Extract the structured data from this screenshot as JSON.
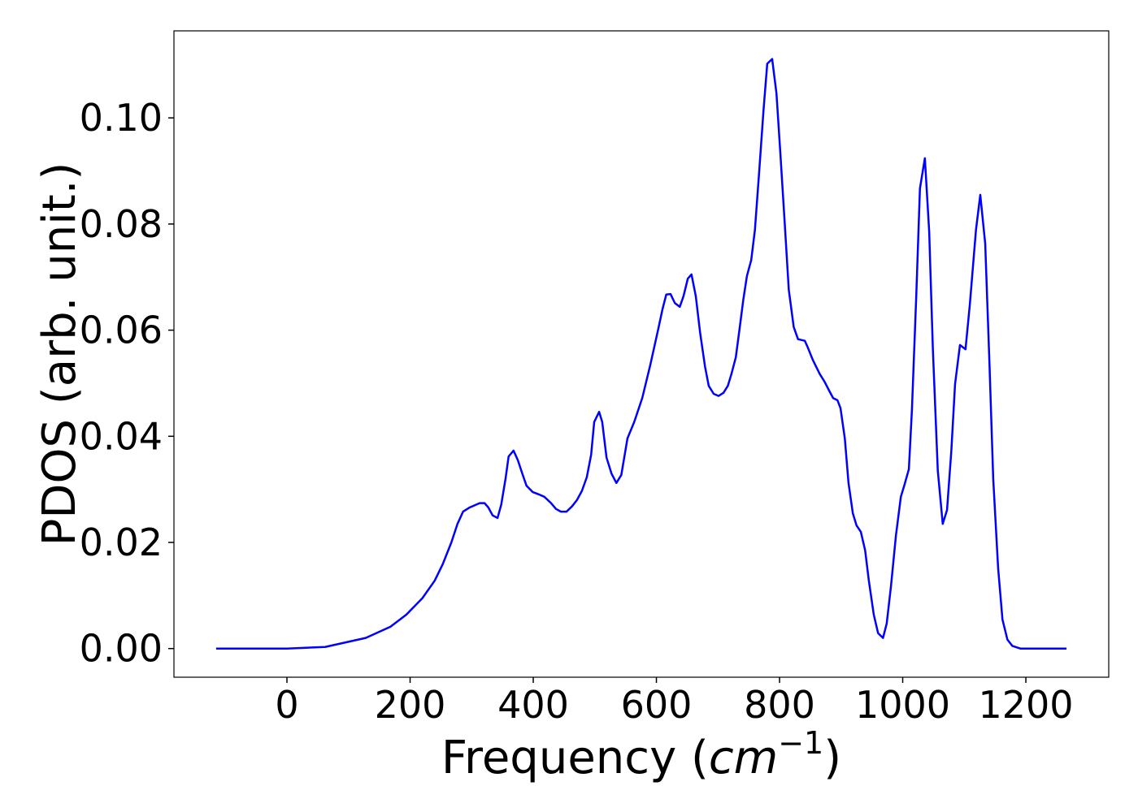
{
  "chart_data": {
    "type": "line",
    "xlabel": [
      "Frequency (",
      "cm",
      "−1",
      ")"
    ],
    "ylabel": "PDOS (arb. unit.)",
    "color": "#0000ff",
    "x": [
      -115,
      0,
      62,
      128,
      168,
      194,
      220,
      240,
      253,
      267,
      277,
      286,
      297,
      313,
      321,
      327,
      334,
      342,
      348,
      355,
      360,
      368,
      375,
      383,
      389,
      399,
      408,
      418,
      429,
      437,
      445,
      454,
      463,
      471,
      479,
      487,
      494,
      499,
      507,
      512,
      519,
      527,
      535,
      543,
      553,
      564,
      577,
      590,
      603,
      610,
      616,
      623,
      630,
      638,
      644,
      651,
      657,
      664,
      671,
      679,
      685,
      693,
      701,
      709,
      716,
      722,
      729,
      735,
      741,
      747,
      754,
      760,
      767,
      774,
      780,
      788,
      795,
      801,
      808,
      815,
      823,
      830,
      841,
      846,
      854,
      865,
      873,
      881,
      887,
      894,
      899,
      906,
      912,
      919,
      925,
      932,
      939,
      945,
      953,
      960,
      968,
      974,
      981,
      989,
      997,
      1003,
      1010,
      1015,
      1022,
      1028,
      1036,
      1043,
      1049,
      1057,
      1065,
      1072,
      1079,
      1085,
      1093,
      1102,
      1109,
      1119,
      1126,
      1134,
      1141,
      1147,
      1155,
      1162,
      1170,
      1178,
      1191,
      1266
    ],
    "values": [
      0,
      0,
      0.0003,
      0.002,
      0.0041,
      0.0064,
      0.0095,
      0.0128,
      0.0159,
      0.02,
      0.0235,
      0.0258,
      0.0266,
      0.0274,
      0.0274,
      0.0266,
      0.0251,
      0.0246,
      0.0271,
      0.032,
      0.0362,
      0.0373,
      0.0355,
      0.0327,
      0.0307,
      0.0295,
      0.0291,
      0.0286,
      0.0274,
      0.0263,
      0.0258,
      0.0258,
      0.0268,
      0.028,
      0.0297,
      0.0323,
      0.0365,
      0.0427,
      0.0446,
      0.0427,
      0.036,
      0.033,
      0.0312,
      0.0327,
      0.0396,
      0.0427,
      0.0472,
      0.0534,
      0.0602,
      0.064,
      0.0667,
      0.0668,
      0.0651,
      0.0644,
      0.0664,
      0.0697,
      0.0705,
      0.0664,
      0.0595,
      0.0531,
      0.0495,
      0.048,
      0.0476,
      0.0482,
      0.0495,
      0.0518,
      0.0549,
      0.0602,
      0.0656,
      0.0702,
      0.0732,
      0.0789,
      0.09,
      0.1015,
      0.1102,
      0.1111,
      0.1046,
      0.0939,
      0.0809,
      0.0676,
      0.0606,
      0.0583,
      0.058,
      0.0567,
      0.0544,
      0.0518,
      0.0503,
      0.0485,
      0.0472,
      0.0468,
      0.0453,
      0.0396,
      0.0312,
      0.0255,
      0.0232,
      0.022,
      0.0185,
      0.0128,
      0.0064,
      0.0029,
      0.002,
      0.0047,
      0.0118,
      0.0213,
      0.0286,
      0.0309,
      0.0338,
      0.045,
      0.0664,
      0.0867,
      0.0924,
      0.0786,
      0.0564,
      0.0335,
      0.0235,
      0.0261,
      0.0373,
      0.0498,
      0.0572,
      0.0564,
      0.0648,
      0.0789,
      0.0855,
      0.0763,
      0.0534,
      0.032,
      0.0151,
      0.0055,
      0.0017,
      0.0005,
      0,
      0
    ],
    "xlim": [
      -183.5,
      1334.6
    ],
    "ylim": [
      -0.0054,
      0.1164
    ],
    "xticks": [
      0,
      200,
      400,
      600,
      800,
      1000,
      1200
    ],
    "yticks": [
      {
        "value": 0,
        "label": "0.00"
      },
      {
        "value": 0.02,
        "label": "0.02"
      },
      {
        "value": 0.04,
        "label": "0.04"
      },
      {
        "value": 0.06,
        "label": "0.06"
      },
      {
        "value": 0.08,
        "label": "0.08"
      },
      {
        "value": 0.1,
        "label": "0.10"
      }
    ]
  }
}
